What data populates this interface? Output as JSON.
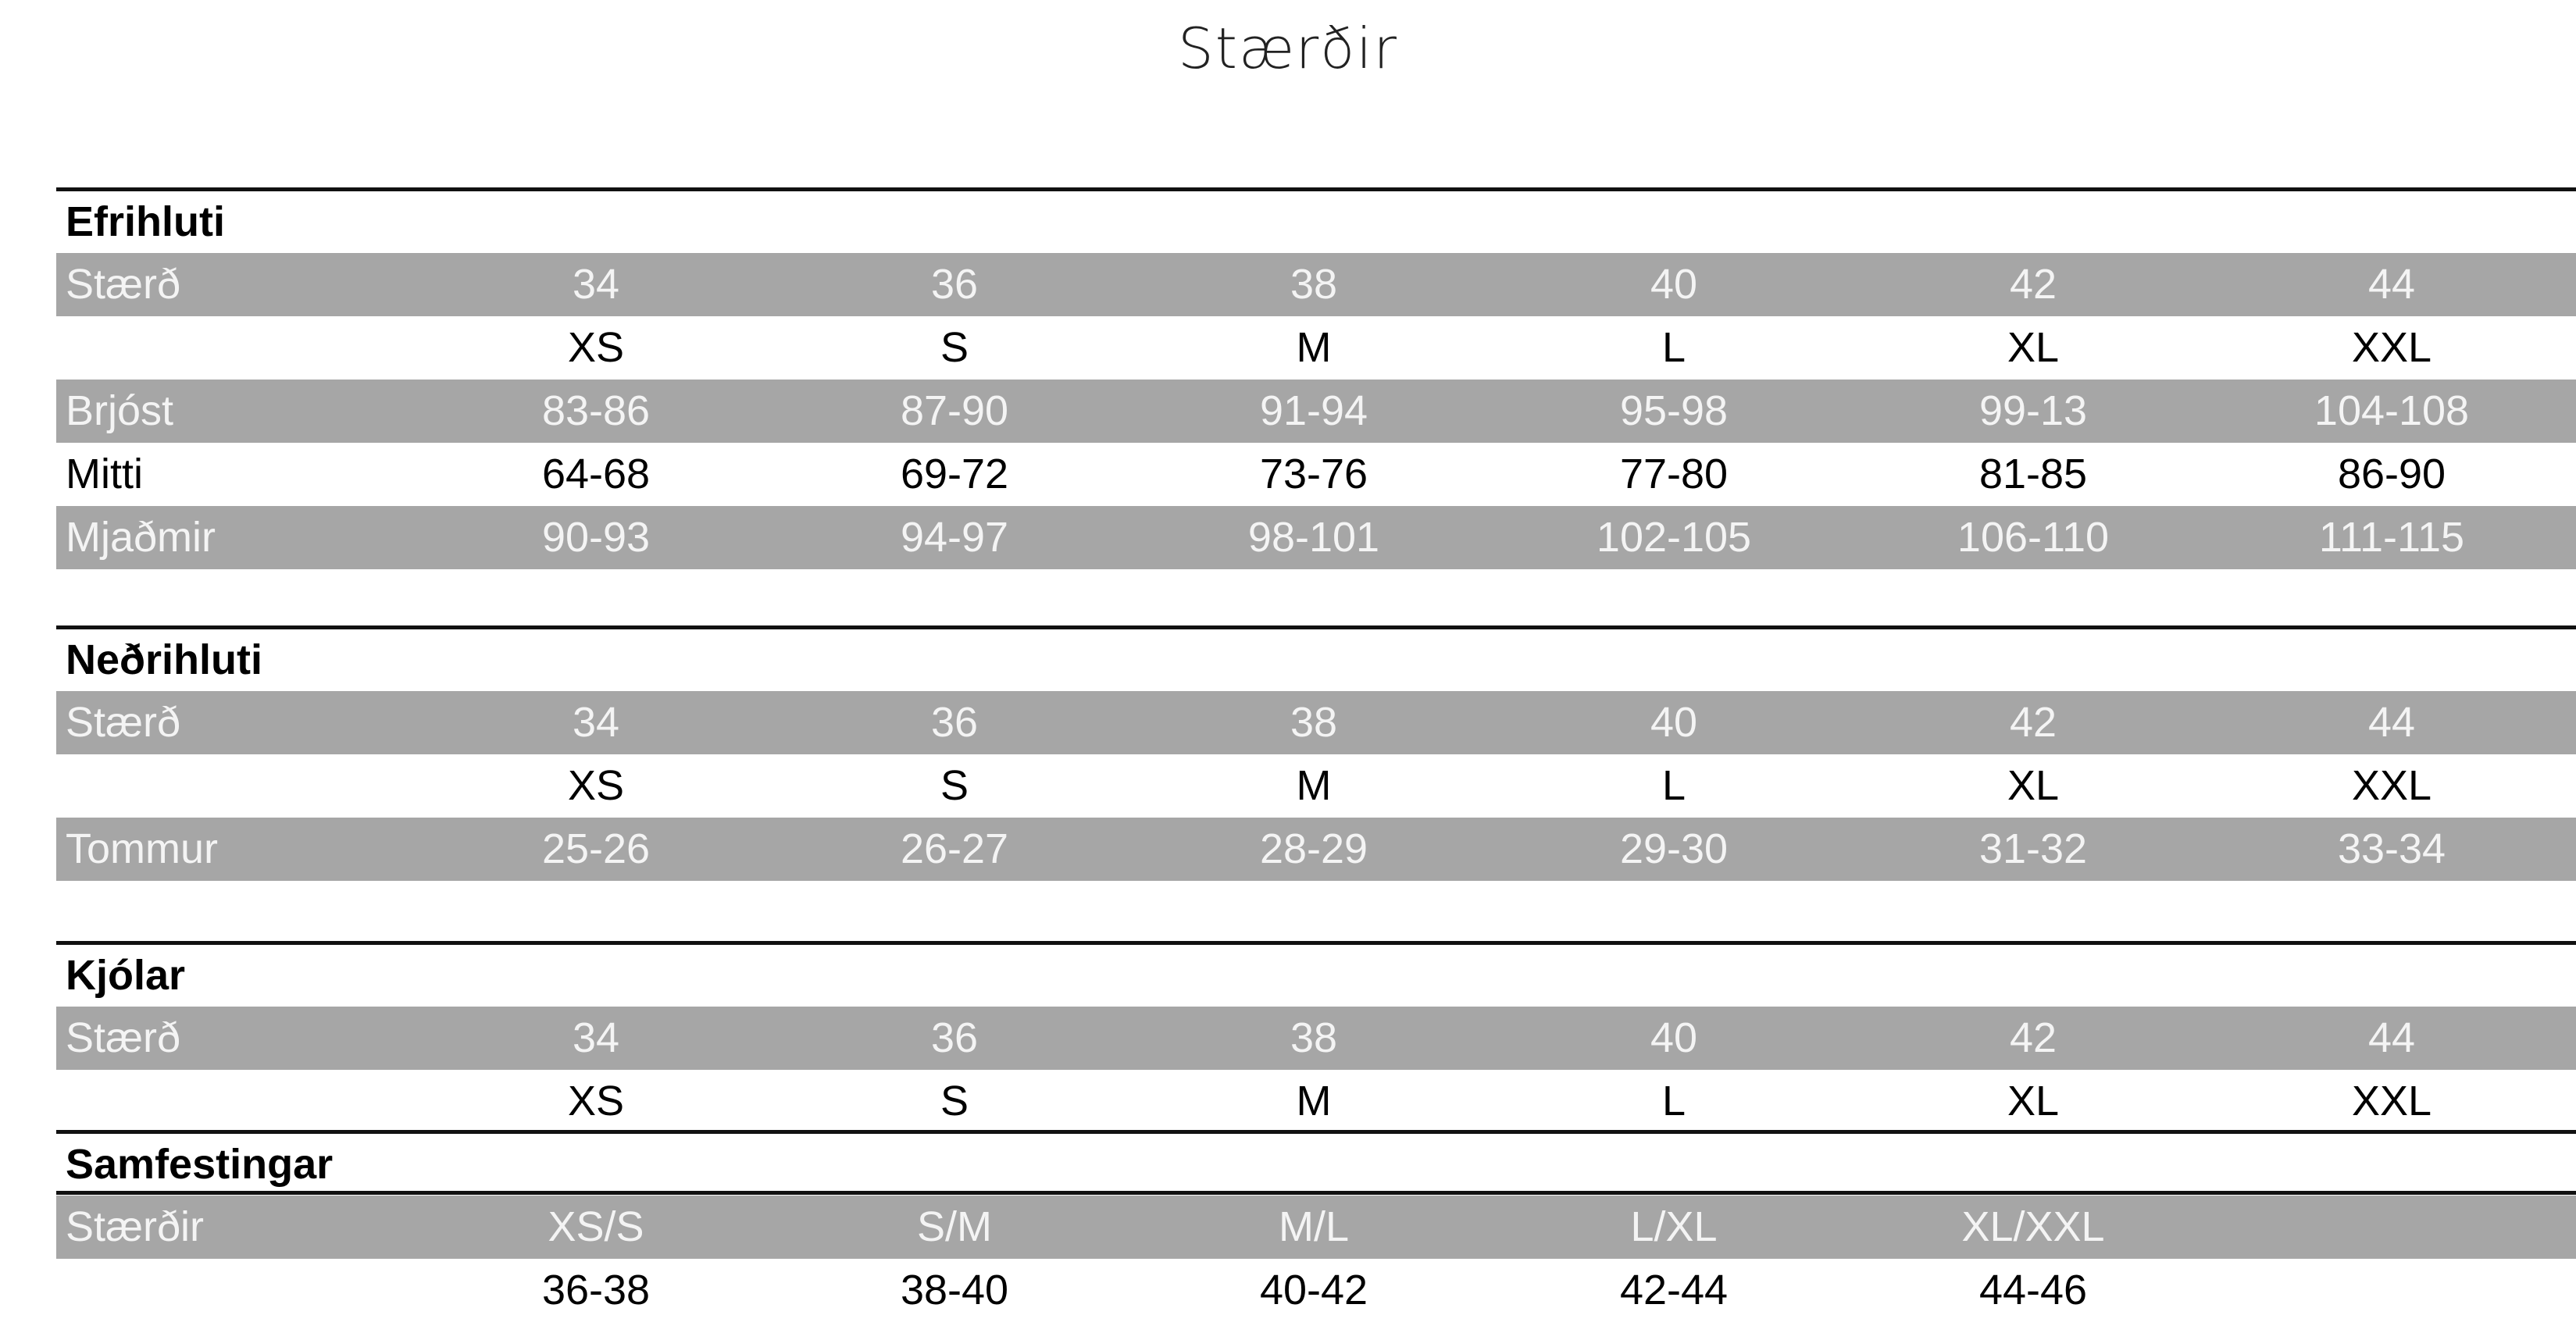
{
  "title": "Stærðir",
  "sections": [
    {
      "heading": "Efrihluti",
      "rows": [
        {
          "label": "Stærð",
          "cells": [
            "34",
            "36",
            "38",
            "40",
            "42",
            "44"
          ]
        },
        {
          "cells": [
            "XS",
            "S",
            "M",
            "L",
            "XL",
            "XXL"
          ]
        },
        {
          "label": "Brjóst",
          "cells": [
            "83-86",
            "87-90",
            "91-94",
            "95-98",
            "99-13",
            "104-108"
          ]
        },
        {
          "label": "Mitti",
          "cells": [
            "64-68",
            "69-72",
            "73-76",
            "77-80",
            "81-85",
            "86-90"
          ]
        },
        {
          "label": "Mjaðmir",
          "cells": [
            "90-93",
            "94-97",
            "98-101",
            "102-105",
            "106-110",
            "111-115"
          ]
        }
      ]
    },
    {
      "heading": "Neðrihluti",
      "rows": [
        {
          "label": "Stærð",
          "cells": [
            "34",
            "36",
            "38",
            "40",
            "42",
            "44"
          ]
        },
        {
          "cells": [
            "XS",
            "S",
            "M",
            "L",
            "XL",
            "XXL"
          ]
        },
        {
          "label": "Tommur",
          "cells": [
            "25-26",
            "26-27",
            "28-29",
            "29-30",
            "31-32",
            "33-34"
          ]
        }
      ]
    },
    {
      "heading": "Kjólar",
      "rows": [
        {
          "label": "Stærð",
          "cells": [
            "34",
            "36",
            "38",
            "40",
            "42",
            "44"
          ]
        },
        {
          "cells": [
            "XS",
            "S",
            "M",
            "L",
            "XL",
            "XXL"
          ]
        }
      ]
    },
    {
      "heading": "Samfestingar",
      "rows": [
        {
          "label": "Stærðir",
          "cells": [
            "XS/S",
            "S/M",
            "M/L",
            "L/XL",
            "XL/XXL"
          ]
        },
        {
          "cells": [
            "36-38",
            "38-40",
            "40-42",
            "42-44",
            "44-46"
          ]
        }
      ]
    }
  ]
}
